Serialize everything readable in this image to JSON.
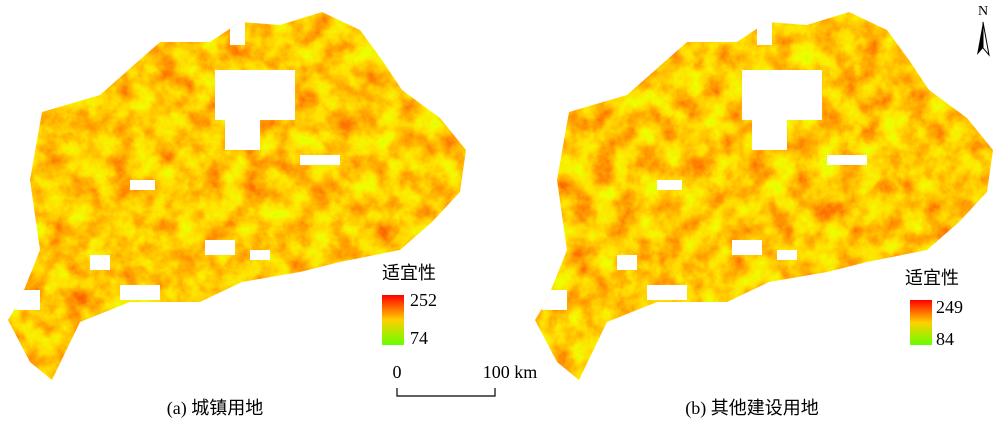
{
  "panels": [
    {
      "legend_title": "适宜性",
      "legend_max": 252,
      "legend_min": 74,
      "caption": "(a) 城镇用地"
    },
    {
      "legend_title": "适宜性",
      "legend_max": 249,
      "legend_min": 84,
      "caption": "(b) 其他建设用地"
    }
  ],
  "scale_bar": {
    "start": "0",
    "end": "100 km"
  },
  "north_arrow": "N"
}
